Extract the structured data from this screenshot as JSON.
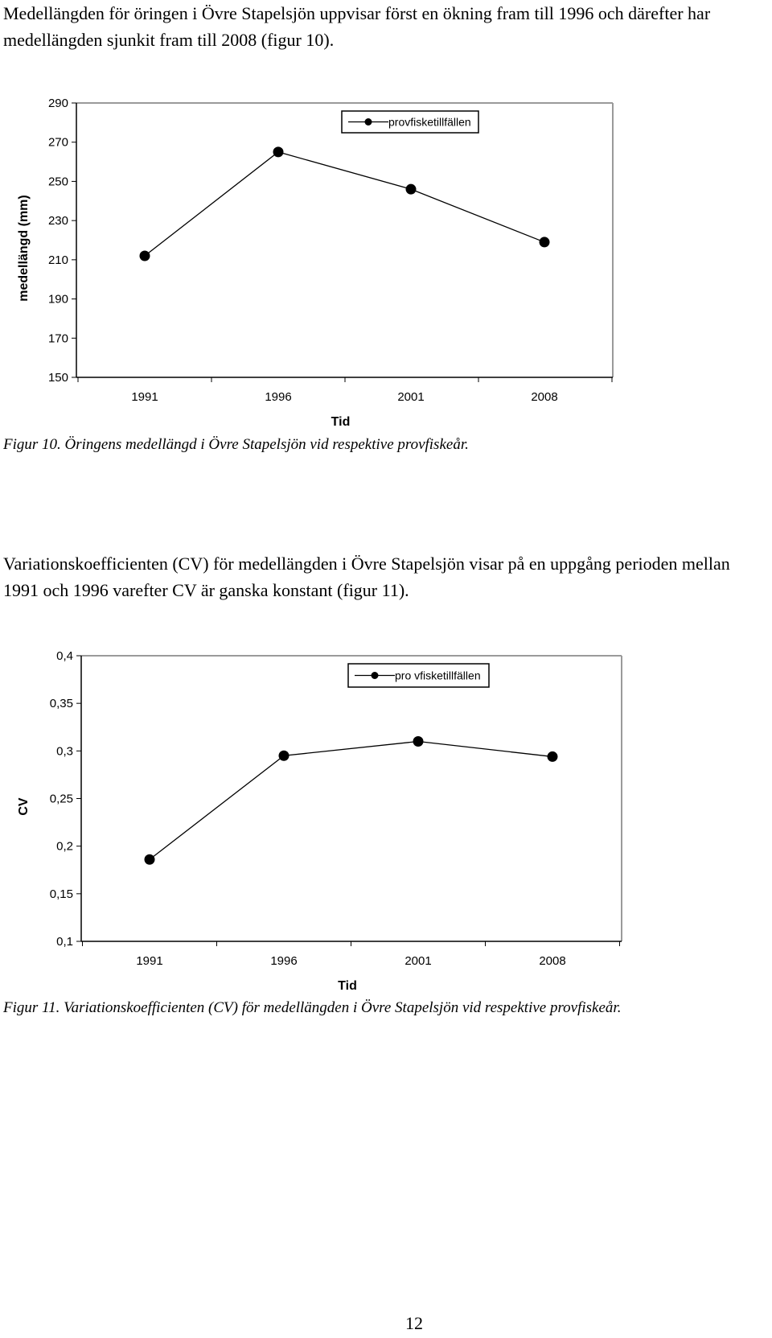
{
  "paragraphs": {
    "p1": "Medellängden för öringen i Övre Stapelsjön uppvisar först en ökning fram till 1996 och därefter har medellängden sjunkit fram till 2008 (figur 10).",
    "p2": "Variationskoefficienten (CV) för medellängden i Övre Stapelsjön visar på en uppgång perioden mellan 1991 och 1996 varefter CV är ganska konstant (figur 11)."
  },
  "captions": {
    "fig10": "Figur 10. Öringens medellängd i Övre Stapelsjön vid respektive provfiskeår.",
    "fig11": "Figur 11. Variationskoefficienten (CV) för medellängden i Övre Stapelsjön vid respektive provfiskeår."
  },
  "page_number": "12",
  "chart_data": [
    {
      "type": "line",
      "categories": [
        "1991",
        "1996",
        "2001",
        "2008"
      ],
      "series": [
        {
          "name": "provfisketillfällen",
          "values": [
            212,
            265,
            246,
            219
          ]
        }
      ],
      "xlabel": "Tid",
      "ylabel": "medellängd (mm)",
      "ylim": [
        150,
        290
      ],
      "yticks": [
        150,
        170,
        190,
        210,
        230,
        250,
        270,
        290
      ],
      "ytick_labels": [
        "150",
        "170",
        "190",
        "210",
        "230",
        "250",
        "270",
        "290"
      ],
      "grid": false,
      "legend": "top-right",
      "color": "#000000"
    },
    {
      "type": "line",
      "categories": [
        "1991",
        "1996",
        "2001",
        "2008"
      ],
      "series": [
        {
          "name": "pro vfisketillfällen",
          "values": [
            0.186,
            0.295,
            0.31,
            0.294
          ]
        }
      ],
      "xlabel": "Tid",
      "ylabel": "CV",
      "ylim": [
        0.1,
        0.4
      ],
      "yticks": [
        0.1,
        0.15,
        0.2,
        0.25,
        0.3,
        0.35,
        0.4
      ],
      "ytick_labels": [
        "0,1",
        "0,15",
        "0,2",
        "0,25",
        "0,3",
        "0,35",
        "0,4"
      ],
      "grid": false,
      "legend": "top-right",
      "color": "#000000"
    }
  ]
}
